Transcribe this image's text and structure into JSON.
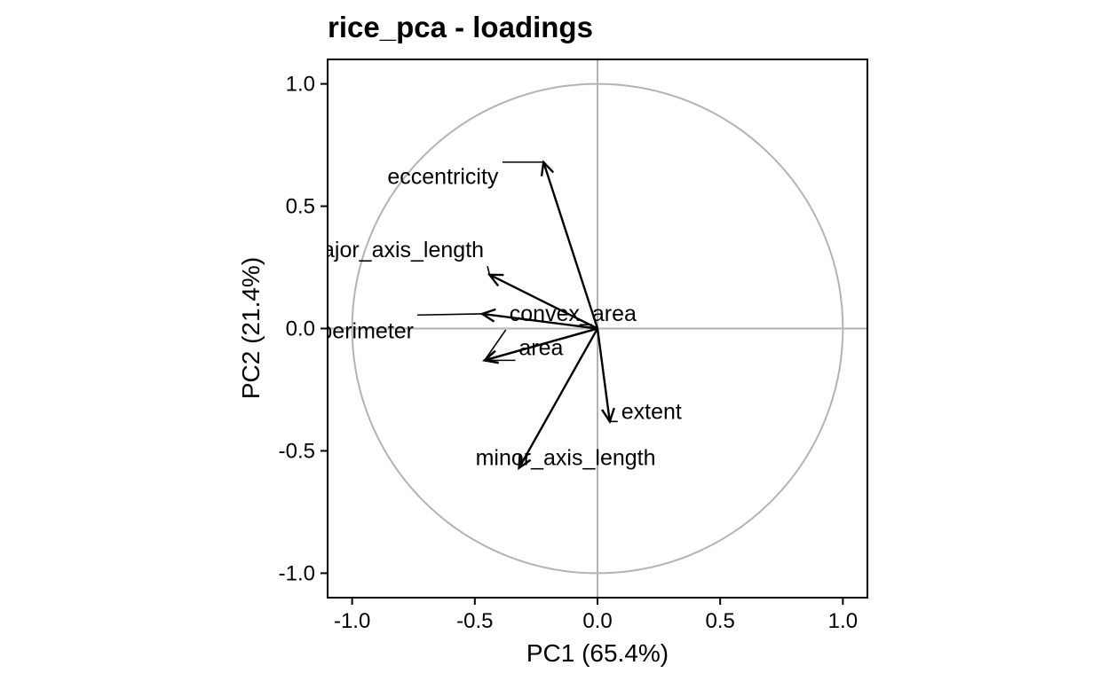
{
  "chart_data": {
    "type": "scatter",
    "title": "rice_pca - loadings",
    "xlabel": "PC1 (65.4%)",
    "ylabel": "PC2 (21.4%)",
    "xlim": [
      -1.1,
      1.1
    ],
    "ylim": [
      -1.1,
      1.1
    ],
    "xticks": [
      -1.0,
      -0.5,
      0.0,
      0.5,
      1.0
    ],
    "xtick_labels": [
      "-1.0",
      "-0.5",
      "0.0",
      "0.5",
      "1.0"
    ],
    "yticks": [
      -1.0,
      -0.5,
      0.0,
      0.5,
      1.0
    ],
    "ytick_labels": [
      "-1.0",
      "-0.5",
      "0.0",
      "0.5",
      "1.0"
    ],
    "grid": false,
    "reference_lines": {
      "x": 0,
      "y": 0
    },
    "unit_circle": true,
    "colors": {
      "arrow": "#000000",
      "reference": "#b3b3b3",
      "frame": "#000000"
    },
    "loadings": [
      {
        "label": "eccentricity",
        "x": -0.22,
        "y": 0.68,
        "label_x": -0.63,
        "label_y": 0.62
      },
      {
        "label": "major_axis_length",
        "x": -0.44,
        "y": 0.22,
        "label_x": -0.83,
        "label_y": 0.32
      },
      {
        "label": "perimeter",
        "x": -0.47,
        "y": 0.06,
        "label_x": -0.94,
        "label_y": -0.01
      },
      {
        "label": "convex_area",
        "x": -0.46,
        "y": -0.13,
        "label_x": -0.1,
        "label_y": 0.06
      },
      {
        "label": "area",
        "x": -0.46,
        "y": -0.13,
        "label_x": -0.23,
        "label_y": -0.08
      },
      {
        "label": "minor_axis_length",
        "x": -0.32,
        "y": -0.57,
        "label_x": -0.13,
        "label_y": -0.53
      },
      {
        "label": "extent",
        "x": 0.05,
        "y": -0.38,
        "label_x": 0.22,
        "label_y": -0.34
      }
    ]
  }
}
